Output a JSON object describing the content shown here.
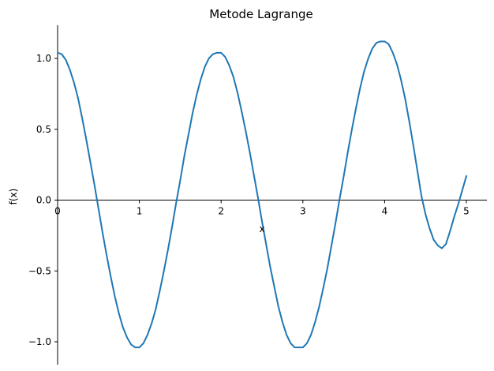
{
  "chart_data": {
    "type": "line",
    "title": "Metode Lagrange",
    "xlabel": "x",
    "ylabel": "f(x)",
    "xlim": [
      0,
      5.25
    ],
    "ylim": [
      -1.15,
      1.24
    ],
    "x_ticks": [
      0,
      1,
      2,
      3,
      4,
      5
    ],
    "x_tick_labels": [
      "0",
      "1",
      "2",
      "3",
      "4",
      "5"
    ],
    "y_ticks": [
      -1.0,
      -0.5,
      0.0,
      0.5,
      1.0
    ],
    "y_tick_labels": [
      "−1.0",
      "−0.5",
      "0.0",
      "0.5",
      "1.0"
    ],
    "grid": false,
    "line_color": "#1f77b4",
    "series": [
      {
        "x": [
          0.0,
          0.05,
          0.1,
          0.15,
          0.2,
          0.25,
          0.3,
          0.35,
          0.4,
          0.45,
          0.5,
          0.55,
          0.6,
          0.65,
          0.7,
          0.75,
          0.8,
          0.85,
          0.9,
          0.95,
          1.0,
          1.05,
          1.1,
          1.15,
          1.2,
          1.25,
          1.3,
          1.35,
          1.4,
          1.45,
          1.5,
          1.55,
          1.6,
          1.65,
          1.7,
          1.75,
          1.8,
          1.85,
          1.9,
          1.95,
          2.0,
          2.05,
          2.1,
          2.15,
          2.2,
          2.25,
          2.3,
          2.35,
          2.4,
          2.45,
          2.5,
          2.55,
          2.6,
          2.65,
          2.7,
          2.75,
          2.8,
          2.85,
          2.9,
          2.95,
          3.0,
          3.05,
          3.1,
          3.15,
          3.2,
          3.25,
          3.3,
          3.35,
          3.4,
          3.45,
          3.5,
          3.55,
          3.6,
          3.65,
          3.7,
          3.75,
          3.8,
          3.85,
          3.9,
          3.95,
          4.0,
          4.05,
          4.1,
          4.15,
          4.2,
          4.25,
          4.3,
          4.35,
          4.4,
          4.45,
          4.5,
          4.55,
          4.6,
          4.65,
          4.7,
          4.75,
          4.8,
          4.85,
          4.9,
          4.95,
          5.0
        ],
        "y": [
          1.04,
          1.03,
          0.99,
          0.92,
          0.83,
          0.72,
          0.58,
          0.43,
          0.27,
          0.11,
          -0.06,
          -0.23,
          -0.39,
          -0.54,
          -0.68,
          -0.8,
          -0.9,
          -0.97,
          -1.02,
          -1.04,
          -1.04,
          -1.01,
          -0.95,
          -0.87,
          -0.77,
          -0.64,
          -0.5,
          -0.35,
          -0.19,
          -0.02,
          0.14,
          0.31,
          0.46,
          0.61,
          0.74,
          0.85,
          0.94,
          1.0,
          1.03,
          1.04,
          1.04,
          1.01,
          0.95,
          0.87,
          0.76,
          0.63,
          0.49,
          0.34,
          0.18,
          0.02,
          -0.15,
          -0.31,
          -0.47,
          -0.61,
          -0.75,
          -0.86,
          -0.95,
          -1.01,
          -1.04,
          -1.04,
          -1.04,
          -1.01,
          -0.95,
          -0.86,
          -0.75,
          -0.62,
          -0.48,
          -0.32,
          -0.16,
          0.01,
          0.17,
          0.34,
          0.5,
          0.65,
          0.79,
          0.91,
          1.0,
          1.07,
          1.11,
          1.12,
          1.12,
          1.1,
          1.04,
          0.96,
          0.85,
          0.72,
          0.56,
          0.39,
          0.21,
          0.03,
          -0.1,
          -0.2,
          -0.28,
          -0.32,
          -0.34,
          -0.31,
          -0.22,
          -0.12,
          -0.03,
          0.07,
          0.17
        ]
      }
    ]
  }
}
